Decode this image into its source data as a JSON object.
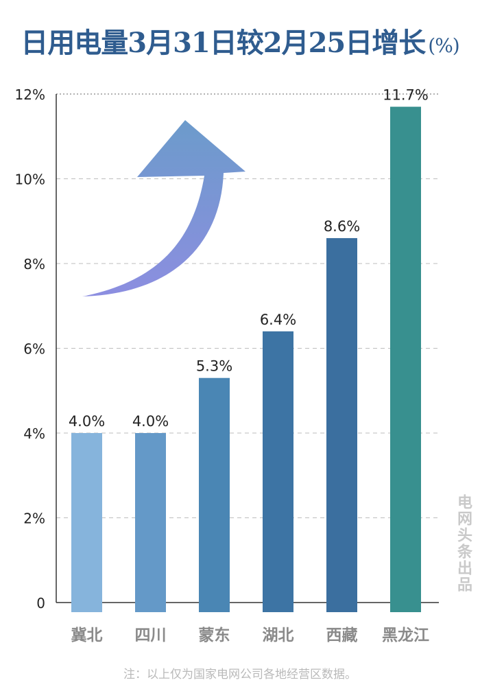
{
  "header": {
    "title": "日用电量3月31日较2月25日增长",
    "unit": "(%)"
  },
  "chart_data": {
    "type": "bar",
    "title": "日用电量3月31日较2月25日增长(%)",
    "categories": [
      "冀北",
      "四川",
      "蒙东",
      "湖北",
      "西藏",
      "黑龙江"
    ],
    "values": [
      4.0,
      4.0,
      5.3,
      6.4,
      8.6,
      11.7
    ],
    "value_labels": [
      "4.0%",
      "4.0%",
      "5.3%",
      "6.4%",
      "8.6%",
      "11.7%"
    ],
    "bar_colors": [
      "#86b4dc",
      "#6499c8",
      "#4a86b4",
      "#3d74a4",
      "#3b6f9f",
      "#38908f"
    ],
    "ylim": [
      0,
      12
    ],
    "y_ticks": [
      0,
      2,
      4,
      6,
      8,
      10,
      12
    ],
    "y_tick_labels": [
      "0",
      "2%",
      "4%",
      "6%",
      "8%",
      "10%",
      "12%"
    ],
    "xlabel": "",
    "ylabel": "",
    "grid": true
  },
  "watermark": "电网头条出品",
  "footnote": "注：以上仅为国家电网公司各地经营区数据。",
  "colors": {
    "title": "#2f5c8f",
    "axis": "#333333",
    "grid": "#bdbdbd",
    "category_label": "#8a8a8a",
    "arrow_top": "#6c9bcb",
    "arrow_bottom": "#8c8ee0"
  }
}
